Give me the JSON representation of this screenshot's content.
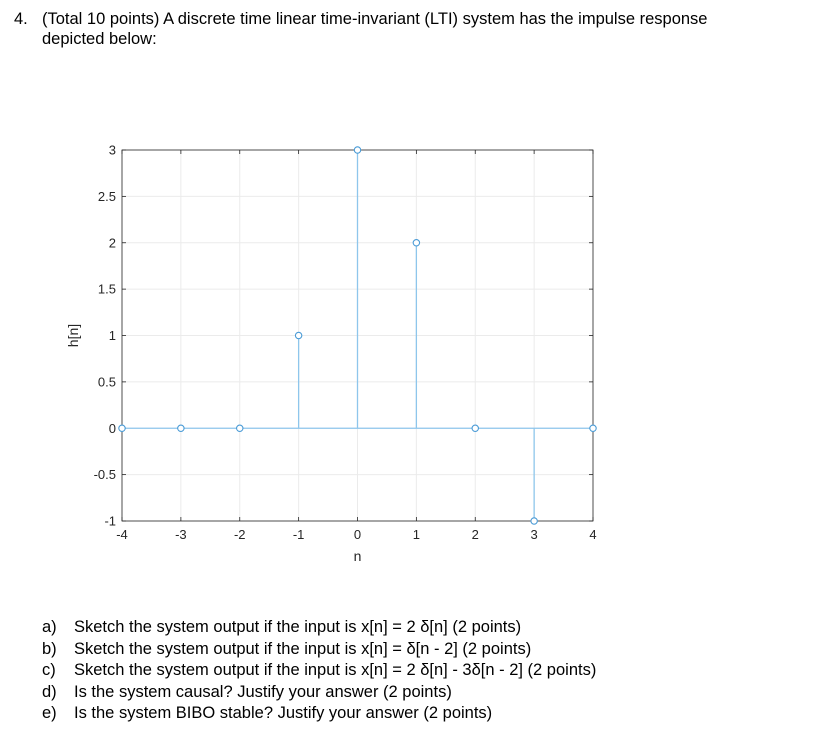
{
  "question": {
    "number": "4.",
    "line1": "(Total 10 points) A discrete time linear time-invariant (LTI) system has the impulse response",
    "line2": "depicted below:"
  },
  "chart_data": {
    "type": "stem",
    "xlabel": "n",
    "ylabel": "h[n]",
    "xlim": [
      -4,
      4
    ],
    "ylim": [
      -1,
      3
    ],
    "xticks": [
      "-4",
      "-3",
      "-2",
      "-1",
      "0",
      "1",
      "2",
      "3",
      "4"
    ],
    "yticks": [
      "-1",
      "-0.5",
      "0",
      "0.5",
      "1",
      "1.5",
      "2",
      "2.5",
      "3"
    ],
    "grid": true,
    "marker_color": "#4a9bd6",
    "stem_color": "#8ec6ec",
    "x": [
      -4,
      -3,
      -2,
      -1,
      0,
      1,
      2,
      3,
      4
    ],
    "values": [
      0,
      0,
      0,
      1,
      3,
      2,
      0,
      -1,
      0
    ]
  },
  "parts": [
    {
      "letter": "a)",
      "text": "Sketch the system output if the input is x[n] = 2 δ[n] (2 points)"
    },
    {
      "letter": "b)",
      "text": "Sketch the system output if the input is x[n] = δ[n - 2] (2 points)"
    },
    {
      "letter": "c)",
      "text": "Sketch the system output if the input is x[n] = 2 δ[n] - 3δ[n - 2] (2 points)"
    },
    {
      "letter": "d)",
      "text": "Is the system causal? Justify your answer (2 points)"
    },
    {
      "letter": "e)",
      "text": "Is the system BIBO stable? Justify your answer (2 points)"
    }
  ]
}
